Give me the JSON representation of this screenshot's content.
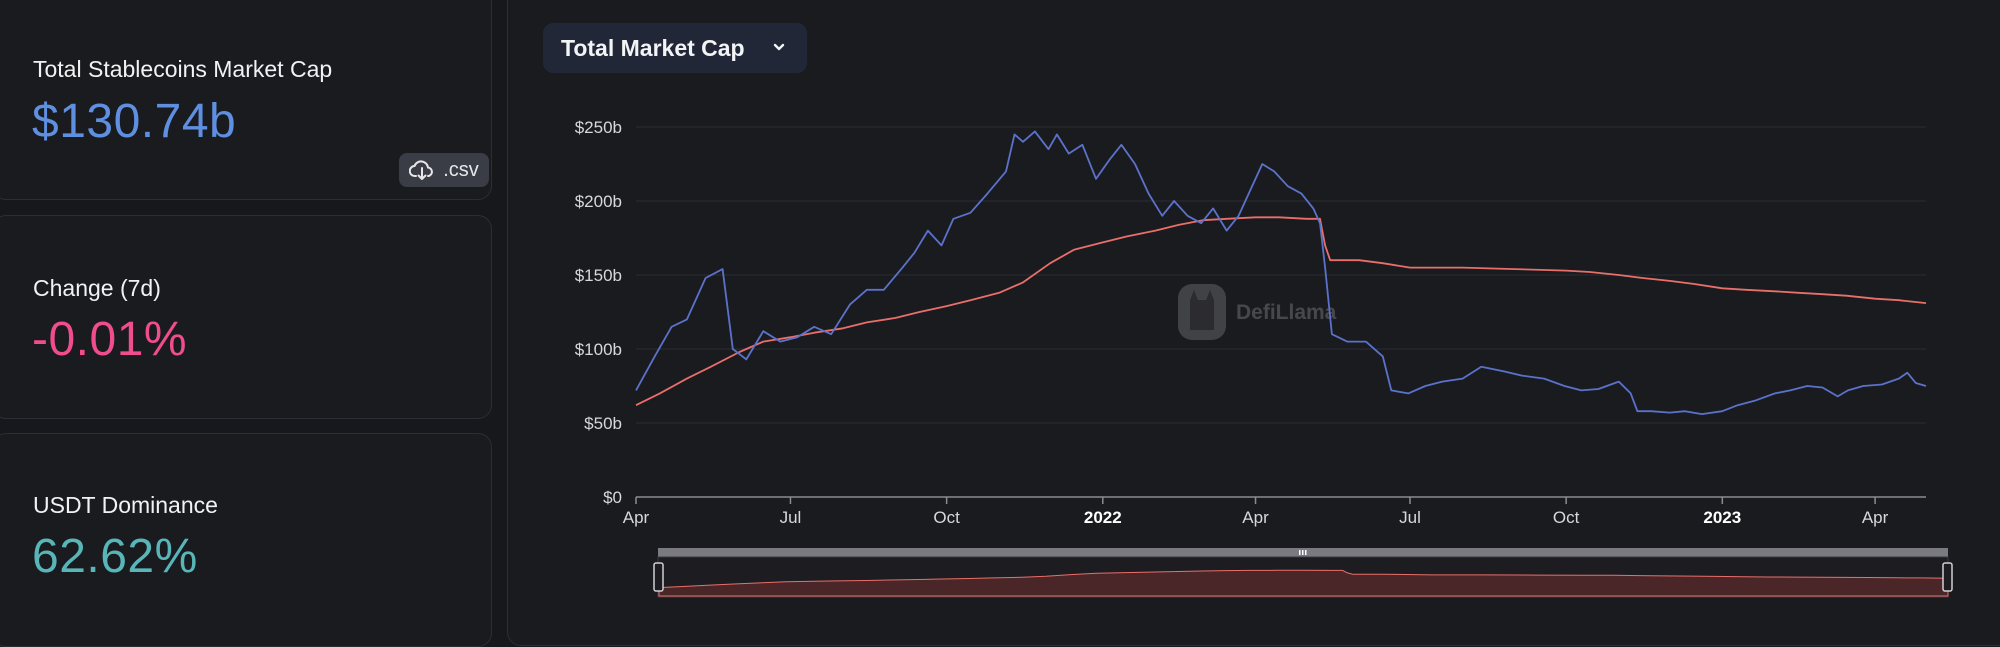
{
  "stats": {
    "market_cap_label": "Total Stablecoins Market Cap",
    "market_cap_value": "$130.74b",
    "csv_label": ".csv",
    "change_label": "Change (7d)",
    "change_value": "-0.01%",
    "dominance_label": "USDT Dominance",
    "dominance_value": "62.62%"
  },
  "colors": {
    "market_cap_value": "#5f8fe0",
    "change_value": "#ef4d8d",
    "dominance_value": "#58b6b9",
    "series_total": "#e86f6a",
    "series_blue": "#5b72cc"
  },
  "selector": {
    "label": "Total Market Cap",
    "icon": "chevron-down-icon"
  },
  "watermark": {
    "text": "DefiLlama",
    "icon": "llama-logo-icon"
  },
  "chart_data": {
    "type": "line",
    "title": "",
    "xlabel": "",
    "ylabel": "",
    "ylim": [
      0,
      250
    ],
    "y_ticks": [
      "$0",
      "$50b",
      "$100b",
      "$150b",
      "$200b",
      "$250b"
    ],
    "x_ticks": [
      {
        "label": "Apr",
        "x": "2021-04-01",
        "bold": false
      },
      {
        "label": "Jul",
        "x": "2021-07-01",
        "bold": false
      },
      {
        "label": "Oct",
        "x": "2021-10-01",
        "bold": false
      },
      {
        "label": "2022",
        "x": "2022-01-01",
        "bold": true
      },
      {
        "label": "Apr",
        "x": "2022-04-01",
        "bold": false
      },
      {
        "label": "Jul",
        "x": "2022-07-01",
        "bold": false
      },
      {
        "label": "Oct",
        "x": "2022-10-01",
        "bold": false
      },
      {
        "label": "2023",
        "x": "2023-01-01",
        "bold": true
      },
      {
        "label": "Apr",
        "x": "2023-04-01",
        "bold": false
      }
    ],
    "grid": true,
    "legend": "none",
    "series": [
      {
        "color": "#e86f6a",
        "x": [
          "2021-04-01",
          "2021-04-15",
          "2021-05-01",
          "2021-05-15",
          "2021-06-01",
          "2021-06-15",
          "2021-07-01",
          "2021-07-15",
          "2021-08-01",
          "2021-08-15",
          "2021-09-01",
          "2021-09-15",
          "2021-10-01",
          "2021-10-15",
          "2021-11-01",
          "2021-11-15",
          "2021-12-01",
          "2021-12-15",
          "2022-01-01",
          "2022-01-15",
          "2022-02-01",
          "2022-02-15",
          "2022-03-01",
          "2022-03-15",
          "2022-04-01",
          "2022-04-15",
          "2022-05-01",
          "2022-05-09",
          "2022-05-12",
          "2022-05-15",
          "2022-06-01",
          "2022-06-15",
          "2022-07-01",
          "2022-08-01",
          "2022-09-01",
          "2022-10-01",
          "2022-10-15",
          "2022-11-01",
          "2022-11-15",
          "2022-12-01",
          "2022-12-15",
          "2023-01-01",
          "2023-01-15",
          "2023-02-01",
          "2023-02-15",
          "2023-03-01",
          "2023-03-15",
          "2023-04-01",
          "2023-04-15",
          "2023-05-01"
        ],
        "y": [
          62,
          70,
          80,
          88,
          98,
          105,
          108,
          111,
          114,
          118,
          121,
          125,
          129,
          133,
          138,
          145,
          158,
          167,
          172,
          176,
          180,
          184,
          187,
          188,
          189,
          189,
          188,
          188,
          170,
          160,
          160,
          158,
          155,
          155,
          154,
          153,
          152,
          150,
          148,
          146,
          144,
          141,
          140,
          139,
          138,
          137,
          136,
          134,
          133,
          131
        ]
      },
      {
        "color": "#5b72cc",
        "x": [
          "2021-04-01",
          "2021-04-12",
          "2021-04-22",
          "2021-05-01",
          "2021-05-12",
          "2021-05-22",
          "2021-05-28",
          "2021-06-05",
          "2021-06-15",
          "2021-06-25",
          "2021-07-05",
          "2021-07-15",
          "2021-07-25",
          "2021-08-05",
          "2021-08-15",
          "2021-08-25",
          "2021-09-05",
          "2021-09-12",
          "2021-09-20",
          "2021-09-28",
          "2021-10-05",
          "2021-10-15",
          "2021-10-25",
          "2021-11-05",
          "2021-11-10",
          "2021-11-15",
          "2021-11-22",
          "2021-11-30",
          "2021-12-05",
          "2021-12-12",
          "2021-12-20",
          "2021-12-28",
          "2022-01-05",
          "2022-01-12",
          "2022-01-20",
          "2022-01-28",
          "2022-02-05",
          "2022-02-12",
          "2022-02-20",
          "2022-02-28",
          "2022-03-07",
          "2022-03-15",
          "2022-03-22",
          "2022-03-30",
          "2022-04-05",
          "2022-04-12",
          "2022-04-20",
          "2022-04-28",
          "2022-05-05",
          "2022-05-09",
          "2022-05-12",
          "2022-05-16",
          "2022-05-25",
          "2022-06-05",
          "2022-06-15",
          "2022-06-20",
          "2022-06-30",
          "2022-07-10",
          "2022-07-20",
          "2022-08-01",
          "2022-08-12",
          "2022-08-25",
          "2022-09-05",
          "2022-09-18",
          "2022-09-30",
          "2022-10-10",
          "2022-10-20",
          "2022-11-01",
          "2022-11-08",
          "2022-11-12",
          "2022-11-20",
          "2022-12-01",
          "2022-12-10",
          "2022-12-20",
          "2023-01-01",
          "2023-01-10",
          "2023-01-20",
          "2023-02-01",
          "2023-02-10",
          "2023-02-20",
          "2023-03-01",
          "2023-03-10",
          "2023-03-16",
          "2023-03-25",
          "2023-04-05",
          "2023-04-15",
          "2023-04-20",
          "2023-04-25",
          "2023-05-01"
        ],
        "y": [
          72,
          95,
          115,
          120,
          148,
          154,
          100,
          93,
          112,
          105,
          108,
          115,
          110,
          130,
          140,
          140,
          155,
          165,
          180,
          170,
          188,
          192,
          205,
          220,
          245,
          240,
          247,
          235,
          245,
          232,
          238,
          215,
          228,
          238,
          225,
          205,
          190,
          200,
          190,
          185,
          195,
          180,
          190,
          210,
          225,
          220,
          210,
          205,
          195,
          185,
          155,
          110,
          105,
          105,
          95,
          72,
          70,
          75,
          78,
          80,
          88,
          85,
          82,
          80,
          75,
          72,
          73,
          78,
          70,
          58,
          58,
          57,
          58,
          56,
          58,
          62,
          65,
          70,
          72,
          75,
          74,
          68,
          72,
          75,
          76,
          80,
          84,
          77,
          75
        ]
      }
    ]
  }
}
